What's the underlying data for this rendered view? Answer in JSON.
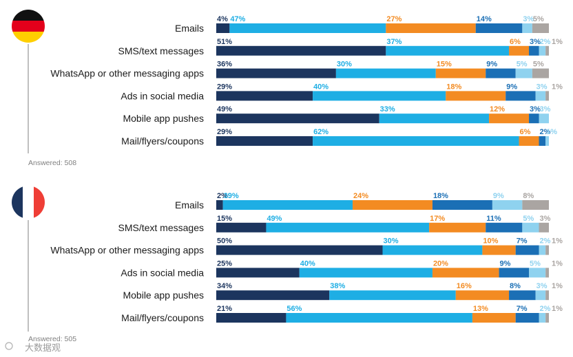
{
  "colors": {
    "series": [
      "#1c355e",
      "#1eaee4",
      "#f38b22",
      "#1b6fb5",
      "#8fd2ef",
      "#aaa5a2"
    ],
    "value_labels": [
      "#1c355e",
      "#1eaee4",
      "#f38b22",
      "#1b6fb5",
      "#8fd2ef",
      "#aaa5a2"
    ],
    "germany_flag": [
      "#111111",
      "#e3001b",
      "#ffcf00"
    ],
    "france_flag": [
      "#1c355e",
      "#ffffff",
      "#ef3e36"
    ]
  },
  "chart_data": [
    {
      "type": "bar",
      "orientation": "horizontal",
      "stacked": true,
      "percent": true,
      "country_icon": "germany-flag-icon",
      "answered": "Answered: 508",
      "categories": [
        "Emails",
        "SMS/text messages",
        "WhatsApp or other messaging apps",
        "Ads in social media",
        "Mobile app pushes",
        "Mail/flyers/coupons"
      ],
      "series": [
        {
          "name": "segment-1",
          "values": [
            4,
            51,
            36,
            29,
            49,
            29
          ]
        },
        {
          "name": "segment-2",
          "values": [
            47,
            37,
            30,
            40,
            33,
            62
          ]
        },
        {
          "name": "segment-3",
          "values": [
            27,
            6,
            15,
            18,
            12,
            6
          ]
        },
        {
          "name": "segment-4",
          "values": [
            14,
            3,
            9,
            9,
            3,
            2
          ]
        },
        {
          "name": "segment-5",
          "values": [
            3,
            2,
            5,
            3,
            3,
            1
          ]
        },
        {
          "name": "segment-6",
          "values": [
            5,
            1,
            5,
            1,
            0,
            0
          ]
        }
      ]
    },
    {
      "type": "bar",
      "orientation": "horizontal",
      "stacked": true,
      "percent": true,
      "country_icon": "france-flag-icon",
      "answered": "Answered: 505",
      "categories": [
        "Emails",
        "SMS/text messages",
        "WhatsApp or other messaging apps",
        "Ads in social media",
        "Mobile app pushes",
        "Mail/flyers/coupons"
      ],
      "series": [
        {
          "name": "segment-1",
          "values": [
            2,
            15,
            50,
            25,
            34,
            21
          ]
        },
        {
          "name": "segment-2",
          "values": [
            39,
            49,
            30,
            40,
            38,
            56
          ]
        },
        {
          "name": "segment-3",
          "values": [
            24,
            17,
            10,
            20,
            16,
            13
          ]
        },
        {
          "name": "segment-4",
          "values": [
            18,
            11,
            7,
            9,
            8,
            7
          ]
        },
        {
          "name": "segment-5",
          "values": [
            9,
            5,
            2,
            5,
            3,
            2
          ]
        },
        {
          "name": "segment-6",
          "values": [
            8,
            3,
            1,
            1,
            1,
            1
          ]
        }
      ]
    }
  ],
  "watermark": "大数据观"
}
